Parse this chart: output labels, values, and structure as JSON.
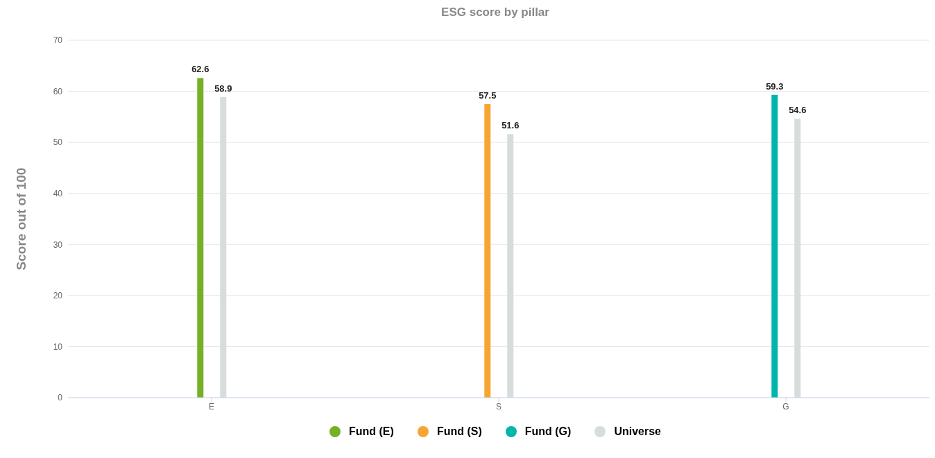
{
  "chart_data": {
    "type": "bar",
    "title": "ESG score by pillar",
    "ylabel": "Score out of 100",
    "categories": [
      "E",
      "S",
      "G"
    ],
    "series": [
      {
        "name": "Fund (E)",
        "color": "#76b025",
        "values": [
          62.6,
          null,
          null
        ]
      },
      {
        "name": "Fund (S)",
        "color": "#f7a532",
        "values": [
          null,
          57.5,
          null
        ]
      },
      {
        "name": "Fund (G)",
        "color": "#00b5ad",
        "values": [
          null,
          null,
          59.3
        ]
      },
      {
        "name": "Universe",
        "color": "#d7dcdc",
        "values": [
          58.9,
          51.6,
          54.6
        ]
      }
    ],
    "ylim": [
      0,
      70
    ],
    "yticks": [
      0,
      10,
      20,
      30,
      40,
      50,
      60,
      70
    ],
    "grid": "y",
    "legend": "bottom",
    "data_labels": true
  }
}
